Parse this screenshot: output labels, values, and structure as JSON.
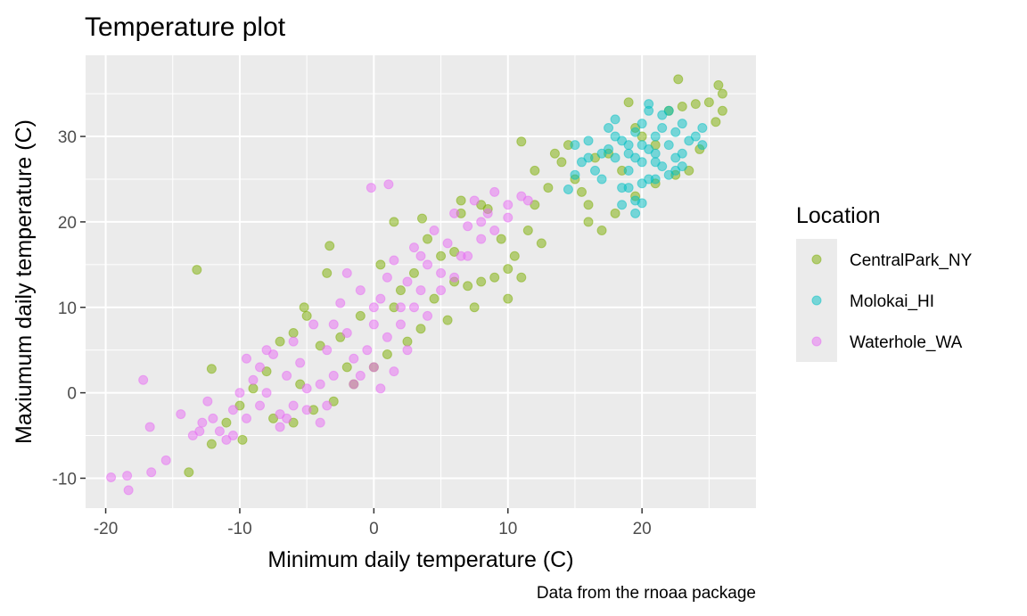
{
  "chart_data": {
    "type": "scatter",
    "title": "Temperature plot",
    "xlabel": "Minimum daily temperature (C)",
    "ylabel": "Maxiumum daily temperature (C)",
    "caption": "Data from the rnoaa package",
    "xlim": [
      -21.5,
      28.5
    ],
    "ylim": [
      -13.5,
      39.5
    ],
    "x_ticks": [
      -20,
      -10,
      0,
      10,
      20
    ],
    "y_ticks": [
      -10,
      0,
      10,
      20,
      30
    ],
    "grid": true,
    "legend": {
      "title": "Location",
      "position": "right"
    },
    "point_alpha": 0.5,
    "series": [
      {
        "name": "CentralPark_NY",
        "color": "#7CAE00",
        "points": [
          [
            -13.2,
            14.4
          ],
          [
            -12.1,
            2.8
          ],
          [
            -12.1,
            -6.0
          ],
          [
            -13.8,
            -9.3
          ],
          [
            -9.8,
            -5.5
          ],
          [
            -11.0,
            -3.5
          ],
          [
            -3.3,
            17.2
          ],
          [
            -3.5,
            14.0
          ],
          [
            -5.0,
            9.0
          ],
          [
            -5.2,
            10.0
          ],
          [
            -6.0,
            7.0
          ],
          [
            -7.0,
            6.0
          ],
          [
            -8.0,
            2.5
          ],
          [
            -9.0,
            0.5
          ],
          [
            -10.0,
            -1.5
          ],
          [
            -4.0,
            5.5
          ],
          [
            -2.0,
            3.0
          ],
          [
            -1.0,
            9.0
          ],
          [
            1.5,
            20.0
          ],
          [
            0.5,
            15.0
          ],
          [
            2.0,
            12.0
          ],
          [
            3.0,
            14.0
          ],
          [
            4.0,
            18.0
          ],
          [
            3.6,
            20.4
          ],
          [
            6.5,
            21.0
          ],
          [
            6.5,
            22.5
          ],
          [
            8.0,
            22.0
          ],
          [
            8.5,
            21.5
          ],
          [
            5.0,
            16.0
          ],
          [
            6.0,
            13.0
          ],
          [
            7.0,
            12.5
          ],
          [
            8.0,
            13.0
          ],
          [
            9.0,
            13.5
          ],
          [
            10.0,
            14.5
          ],
          [
            11.0,
            13.5
          ],
          [
            10.5,
            16.0
          ],
          [
            11.0,
            29.4
          ],
          [
            12.0,
            26.0
          ],
          [
            12.0,
            22.0
          ],
          [
            13.0,
            24.0
          ],
          [
            13.5,
            28.0
          ],
          [
            14.0,
            27.0
          ],
          [
            15.0,
            25.0
          ],
          [
            15.5,
            23.5
          ],
          [
            16.0,
            22.0
          ],
          [
            16.0,
            20.0
          ],
          [
            17.0,
            19.0
          ],
          [
            18.0,
            21.0
          ],
          [
            18.5,
            26.0
          ],
          [
            19.0,
            34.0
          ],
          [
            19.5,
            31.0
          ],
          [
            20.0,
            30.0
          ],
          [
            21.0,
            29.0
          ],
          [
            22.0,
            33.0
          ],
          [
            23.0,
            33.5
          ],
          [
            24.0,
            33.8
          ],
          [
            25.0,
            34.0
          ],
          [
            25.7,
            36.0
          ],
          [
            26.0,
            35.0
          ],
          [
            25.5,
            31.7
          ],
          [
            26.0,
            33.0
          ],
          [
            22.7,
            36.7
          ],
          [
            24.3,
            28.5
          ],
          [
            23.5,
            26.0
          ],
          [
            22.5,
            25.5
          ],
          [
            21.0,
            24.5
          ],
          [
            19.5,
            23.0
          ],
          [
            17.5,
            28.0
          ],
          [
            16.5,
            27.5
          ],
          [
            14.5,
            29.0
          ],
          [
            12.5,
            17.5
          ],
          [
            10.0,
            11.0
          ],
          [
            7.5,
            10.0
          ],
          [
            5.5,
            8.5
          ],
          [
            3.5,
            7.5
          ],
          [
            2.5,
            6.0
          ],
          [
            1.0,
            4.5
          ],
          [
            0.0,
            3.0
          ],
          [
            -1.5,
            1.0
          ],
          [
            -3.0,
            -1.0
          ],
          [
            -4.5,
            -2.0
          ],
          [
            -6.0,
            -3.5
          ],
          [
            -7.5,
            -3.0
          ],
          [
            -5.5,
            1.0
          ],
          [
            -2.5,
            6.5
          ],
          [
            1.5,
            10.0
          ],
          [
            4.5,
            11.0
          ],
          [
            6.0,
            16.5
          ],
          [
            9.5,
            18.0
          ],
          [
            11.5,
            19.0
          ]
        ]
      },
      {
        "name": "Molokai_HI",
        "color": "#00BFC4",
        "points": [
          [
            14.5,
            23.8
          ],
          [
            15.0,
            25.5
          ],
          [
            15.5,
            27.0
          ],
          [
            15.0,
            29.0
          ],
          [
            16.0,
            29.5
          ],
          [
            16.5,
            26.0
          ],
          [
            17.0,
            25.0
          ],
          [
            17.5,
            28.5
          ],
          [
            17.5,
            31.0
          ],
          [
            18.0,
            27.5
          ],
          [
            18.0,
            32.0
          ],
          [
            18.5,
            24.0
          ],
          [
            19.0,
            26.0
          ],
          [
            19.0,
            29.0
          ],
          [
            19.5,
            30.5
          ],
          [
            19.5,
            22.5
          ],
          [
            20.0,
            27.0
          ],
          [
            20.0,
            31.5
          ],
          [
            20.5,
            25.0
          ],
          [
            20.5,
            33.0
          ],
          [
            20.0,
            22.2
          ],
          [
            21.0,
            28.0
          ],
          [
            21.0,
            30.0
          ],
          [
            21.5,
            26.5
          ],
          [
            21.5,
            31.0
          ],
          [
            22.0,
            29.0
          ],
          [
            22.0,
            25.5
          ],
          [
            22.5,
            30.5
          ],
          [
            22.5,
            27.5
          ],
          [
            23.0,
            28.0
          ],
          [
            23.0,
            31.5
          ],
          [
            23.5,
            29.5
          ],
          [
            24.0,
            30.0
          ],
          [
            24.5,
            29.0
          ],
          [
            24.5,
            31.0
          ],
          [
            18.5,
            29.5
          ],
          [
            19.0,
            28.0
          ],
          [
            20.0,
            29.0
          ],
          [
            20.5,
            28.5
          ],
          [
            21.0,
            27.0
          ],
          [
            19.5,
            27.5
          ],
          [
            18.0,
            30.0
          ],
          [
            17.0,
            28.0
          ],
          [
            16.0,
            27.5
          ],
          [
            20.5,
            33.8
          ],
          [
            21.5,
            32.5
          ],
          [
            22.0,
            33.0
          ],
          [
            19.0,
            24.0
          ],
          [
            20.0,
            24.5
          ],
          [
            21.0,
            25.0
          ],
          [
            22.5,
            26.0
          ],
          [
            23.0,
            26.5
          ],
          [
            18.5,
            22.0
          ],
          [
            19.5,
            21.0
          ]
        ]
      },
      {
        "name": "Waterhole_WA",
        "color": "#E76BF3",
        "points": [
          [
            -19.6,
            -9.9
          ],
          [
            -18.4,
            -9.7
          ],
          [
            -18.3,
            -11.4
          ],
          [
            -17.2,
            1.5
          ],
          [
            -16.7,
            -4.0
          ],
          [
            -16.6,
            -9.3
          ],
          [
            -15.5,
            -7.9
          ],
          [
            -14.4,
            -2.5
          ],
          [
            -13.5,
            -5.0
          ],
          [
            -12.8,
            -3.5
          ],
          [
            -12.4,
            -1.0
          ],
          [
            -11.5,
            -4.5
          ],
          [
            -11.0,
            -5.5
          ],
          [
            -10.5,
            -2.0
          ],
          [
            -10.0,
            0.0
          ],
          [
            -9.5,
            -3.0
          ],
          [
            -9.0,
            1.5
          ],
          [
            -8.5,
            3.0
          ],
          [
            -8.0,
            0.0
          ],
          [
            -7.5,
            4.5
          ],
          [
            -7.0,
            -2.5
          ],
          [
            -6.5,
            2.0
          ],
          [
            -6.0,
            6.0
          ],
          [
            -5.5,
            3.5
          ],
          [
            -5.0,
            0.5
          ],
          [
            -4.5,
            8.0
          ],
          [
            -4.0,
            -3.5
          ],
          [
            -3.5,
            5.0
          ],
          [
            -3.0,
            2.0
          ],
          [
            -2.5,
            10.5
          ],
          [
            -2.0,
            7.0
          ],
          [
            -1.5,
            1.0
          ],
          [
            -1.0,
            12.0
          ],
          [
            -0.5,
            5.0
          ],
          [
            0.0,
            8.0
          ],
          [
            0.0,
            3.0
          ],
          [
            0.5,
            11.0
          ],
          [
            1.0,
            6.5
          ],
          [
            1.5,
            15.5
          ],
          [
            2.0,
            10.0
          ],
          [
            2.5,
            13.0
          ],
          [
            3.0,
            17.0
          ],
          [
            3.5,
            12.0
          ],
          [
            4.0,
            15.0
          ],
          [
            4.5,
            19.0
          ],
          [
            5.0,
            14.0
          ],
          [
            5.5,
            17.5
          ],
          [
            6.0,
            21.0
          ],
          [
            6.5,
            16.0
          ],
          [
            7.0,
            19.5
          ],
          [
            7.5,
            22.5
          ],
          [
            8.0,
            18.0
          ],
          [
            8.5,
            21.0
          ],
          [
            9.0,
            23.5
          ],
          [
            10.0,
            22.0
          ],
          [
            11.0,
            23.0
          ],
          [
            11.5,
            22.5
          ],
          [
            -0.2,
            24.0
          ],
          [
            1.1,
            24.4
          ],
          [
            -8.0,
            5.0
          ],
          [
            -9.5,
            4.0
          ],
          [
            -7.0,
            -4.0
          ],
          [
            -6.0,
            -1.5
          ],
          [
            -4.0,
            1.0
          ],
          [
            -3.0,
            8.0
          ],
          [
            -1.5,
            4.0
          ],
          [
            0.5,
            0.5
          ],
          [
            1.5,
            2.5
          ],
          [
            2.0,
            8.0
          ],
          [
            3.0,
            10.0
          ],
          [
            4.0,
            9.0
          ],
          [
            5.0,
            12.0
          ],
          [
            6.0,
            13.5
          ],
          [
            7.0,
            16.0
          ],
          [
            8.0,
            20.0
          ],
          [
            9.0,
            19.0
          ],
          [
            10.0,
            20.5
          ],
          [
            -2.0,
            14.0
          ],
          [
            -5.0,
            -2.0
          ],
          [
            -10.5,
            -5.0
          ],
          [
            -12.0,
            -3.0
          ],
          [
            -13.0,
            -4.5
          ],
          [
            -1.0,
            2.0
          ],
          [
            0.0,
            10.0
          ],
          [
            2.5,
            5.0
          ],
          [
            -3.5,
            -1.5
          ],
          [
            -6.5,
            -3.0
          ],
          [
            -8.5,
            -1.5
          ],
          [
            1.0,
            13.5
          ],
          [
            3.5,
            16.0
          ]
        ]
      }
    ]
  }
}
